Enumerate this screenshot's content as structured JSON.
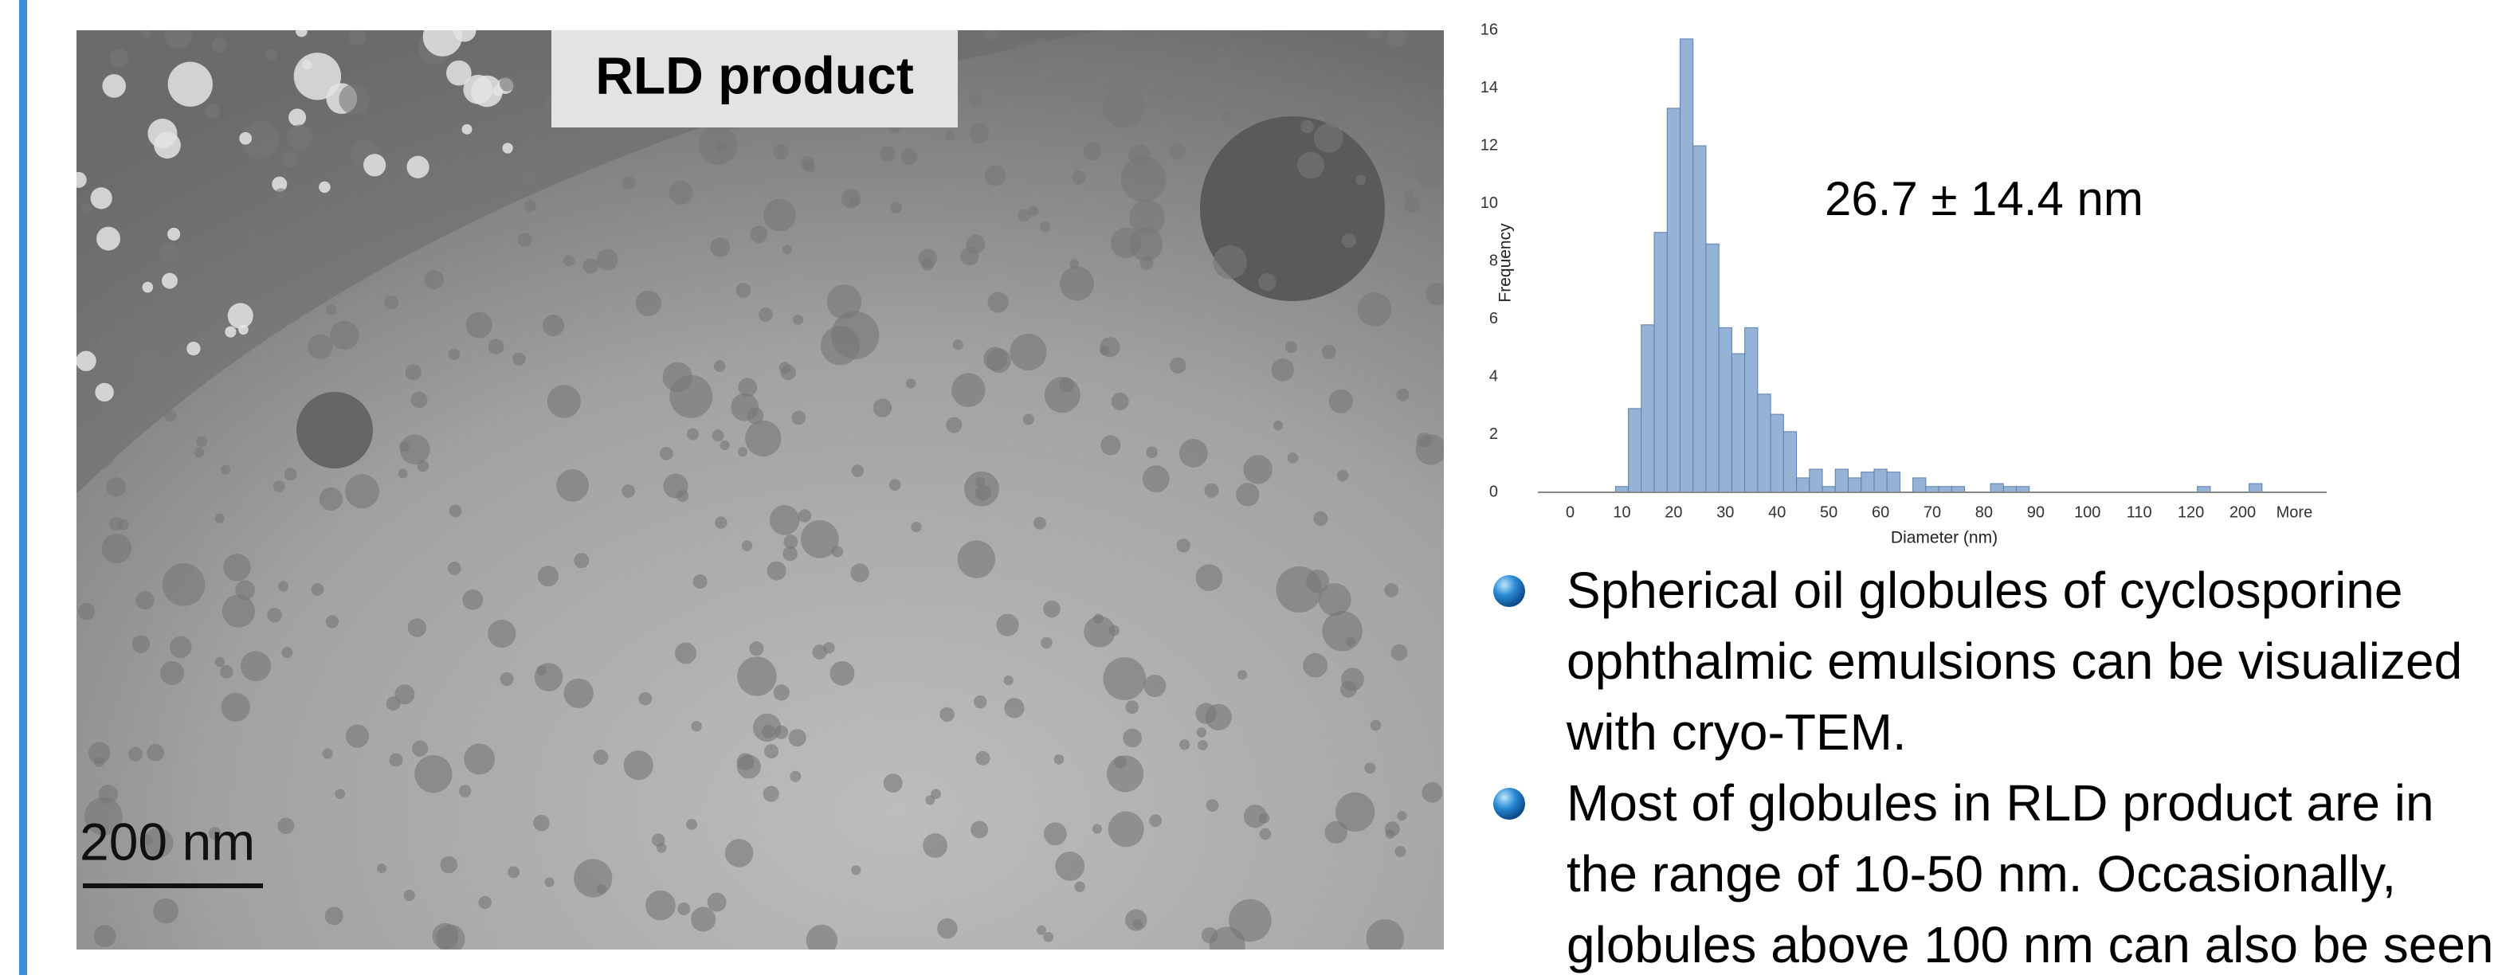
{
  "image_label": "RLD product",
  "scale_bar": "200 nm",
  "chart_data": {
    "type": "bar",
    "annotation": "26.7 ± 14.4 nm",
    "x_label": "Diameter (nm)",
    "y_label": "Frequency",
    "categories": [
      null,
      null,
      "0",
      null,
      null,
      null,
      "10",
      null,
      null,
      null,
      "20",
      null,
      null,
      null,
      "30",
      null,
      null,
      null,
      "40",
      null,
      null,
      null,
      "50",
      null,
      null,
      null,
      "60",
      null,
      null,
      null,
      "70",
      null,
      null,
      null,
      "80",
      null,
      null,
      null,
      "90",
      null,
      null,
      null,
      "100",
      null,
      null,
      null,
      "110",
      null,
      null,
      null,
      "120",
      null,
      null,
      null,
      "200",
      null,
      null,
      null,
      "More",
      null,
      null
    ],
    "values": [
      0,
      0,
      0,
      0,
      0,
      0,
      0.2,
      2.9,
      5.8,
      9.0,
      13.3,
      15.7,
      12.0,
      8.6,
      5.7,
      4.8,
      5.7,
      3.4,
      2.7,
      2.1,
      0.5,
      0.8,
      0.2,
      0.8,
      0.5,
      0.7,
      0.8,
      0.7,
      0,
      0.5,
      0.2,
      0.2,
      0.2,
      0,
      0,
      0.3,
      0.2,
      0.2,
      0,
      0,
      0,
      0,
      0,
      0,
      0,
      0,
      0,
      0,
      0,
      0,
      0,
      0.2,
      0,
      0,
      0,
      0.3,
      0,
      0,
      0,
      0,
      0
    ],
    "color": "#95b3d7",
    "ylim": [
      0,
      16
    ],
    "yticks": [
      0,
      2,
      4,
      6,
      8,
      10,
      12,
      14,
      16
    ]
  },
  "bullets": [
    {
      "lines": [
        "Spherical oil globules of cyclosporine",
        "ophthalmic emulsions can be visualized",
        "with cryo-TEM."
      ]
    },
    {
      "lines": [
        "Most of globules in RLD product are in",
        "the range of 10-50 nm. Occasionally,",
        "globules above 100 nm can also be seen"
      ]
    }
  ]
}
